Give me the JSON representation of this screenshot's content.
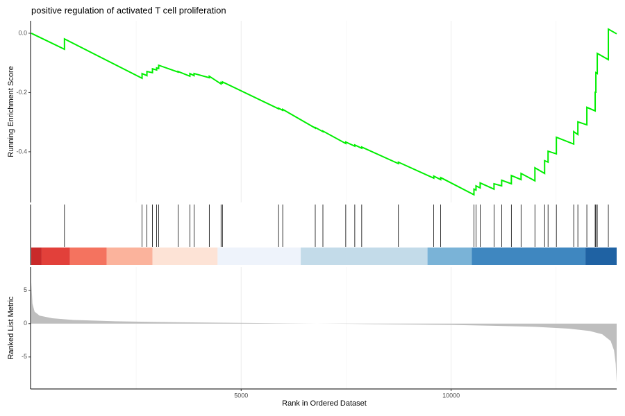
{
  "chart_data": {
    "type": "gsea",
    "title": "positive regulation of activated T cell proliferation",
    "xlabel": "Rank in Ordered Dataset",
    "xlim": [
      1,
      13943
    ],
    "xticks": [
      5000,
      10000
    ],
    "x_minor_grid": [
      2500,
      7500,
      12500
    ],
    "running_score": {
      "ylabel": "Running Enrichment Score",
      "color": "#00ee00",
      "ylim": [
        -0.571,
        0.042
      ],
      "yticks": [
        {
          "value": 0,
          "label": "0.0"
        },
        -0.2,
        -0.4
      ],
      "x": [
        1,
        792,
        792,
        2640,
        2640,
        2756,
        2756,
        2888,
        2888,
        2987,
        2987,
        3036,
        3036,
        3498,
        3498,
        3779,
        3779,
        3878,
        3878,
        4241,
        4241,
        4521,
        4521,
        4554,
        4554,
        5891,
        5891,
        5990,
        5990,
        6765,
        6765,
        6947,
        6947,
        7491,
        7491,
        7706,
        7706,
        7871,
        7871,
        8745,
        8745,
        9587,
        9587,
        9752,
        9752,
        10544,
        10544,
        10593,
        10593,
        10692,
        10692,
        11022,
        11022,
        11204,
        11204,
        11435,
        11435,
        11666,
        11666,
        11996,
        11996,
        12227,
        12227,
        12309,
        12309,
        12507,
        12507,
        12920,
        12920,
        13019,
        13019,
        13233,
        13233,
        13431,
        13431,
        13448,
        13448,
        13481,
        13481,
        13745,
        13745,
        13943
      ],
      "values": [
        0,
        -0.054,
        -0.019,
        -0.152,
        -0.136,
        -0.143,
        -0.129,
        -0.133,
        -0.12,
        -0.124,
        -0.117,
        -0.119,
        -0.108,
        -0.131,
        -0.129,
        -0.145,
        -0.136,
        -0.143,
        -0.136,
        -0.15,
        -0.145,
        -0.171,
        -0.166,
        -0.168,
        -0.164,
        -0.255,
        -0.253,
        -0.26,
        -0.257,
        -0.32,
        -0.318,
        -0.332,
        -0.33,
        -0.372,
        -0.367,
        -0.381,
        -0.377,
        -0.388,
        -0.384,
        -0.44,
        -0.435,
        -0.489,
        -0.482,
        -0.494,
        -0.487,
        -0.545,
        -0.526,
        -0.529,
        -0.515,
        -0.522,
        -0.505,
        -0.526,
        -0.508,
        -0.515,
        -0.496,
        -0.508,
        -0.48,
        -0.494,
        -0.473,
        -0.498,
        -0.454,
        -0.473,
        -0.43,
        -0.435,
        -0.398,
        -0.407,
        -0.351,
        -0.374,
        -0.332,
        -0.342,
        -0.299,
        -0.309,
        -0.25,
        -0.262,
        -0.199,
        -0.199,
        -0.133,
        -0.136,
        -0.068,
        -0.089,
        0.014,
        -0.002
      ]
    },
    "hits": [
      792,
      2640,
      2756,
      2888,
      2987,
      3036,
      3498,
      3779,
      3878,
      4241,
      4521,
      4554,
      5891,
      5990,
      6765,
      6947,
      7491,
      7706,
      7871,
      8745,
      9587,
      9752,
      10544,
      10593,
      10692,
      11022,
      11204,
      11435,
      11666,
      11996,
      12227,
      12309,
      12507,
      12920,
      13019,
      13233,
      13431,
      13448,
      13481,
      13745
    ],
    "color_bar": {
      "breaks": [
        1,
        248,
        924,
        1799,
        2888,
        4439,
        6419,
        9438,
        10494,
        13200,
        13943
      ],
      "colors": [
        "#c92a2a",
        "#e2403a",
        "#f4735f",
        "#fbb39c",
        "#fde3d6",
        "#eef3fb",
        "#c3dbe9",
        "#7ab3d7",
        "#3f87c0",
        "#1f62a3"
      ]
    },
    "ranked_metric": {
      "ylabel": "Ranked List Metric",
      "color": "#bebebe",
      "ylim": [
        -9.8,
        8.5
      ],
      "yticks": [
        5,
        0,
        -5
      ],
      "x": [
        1,
        30,
        80,
        200,
        500,
        1000,
        2000,
        3000,
        4000,
        5000,
        6000,
        6800,
        8000,
        9000,
        10000,
        11000,
        12000,
        12800,
        13300,
        13600,
        13800,
        13880,
        13920,
        13943
      ],
      "values": [
        6.2,
        3,
        1.8,
        1.2,
        0.8,
        0.55,
        0.35,
        0.25,
        0.17,
        0.1,
        0.04,
        0,
        -0.06,
        -0.13,
        -0.2,
        -0.32,
        -0.48,
        -0.75,
        -1.1,
        -1.6,
        -2.6,
        -4,
        -6,
        -8.8
      ]
    }
  }
}
